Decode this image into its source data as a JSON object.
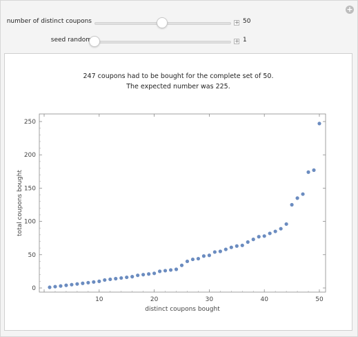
{
  "controls": {
    "coupons": {
      "label": "number of distinct coupons",
      "value": "50",
      "min": 1,
      "max": 100,
      "current": 50
    },
    "seed": {
      "label": "seed random",
      "value": "1",
      "min": 1,
      "max": 100,
      "current": 1
    }
  },
  "output": {
    "line1": "247 coupons had to be bought for the complete set of 50.",
    "line2": "The expected number was 225."
  },
  "colors": {
    "point": "#6b8cc0",
    "axis": "#888888",
    "text": "#444444"
  },
  "chart_data": {
    "type": "scatter",
    "xlabel": "distinct coupons bought",
    "ylabel": "total coupons bought",
    "xlim": [
      0,
      50
    ],
    "ylim": [
      0,
      250
    ],
    "xticks": [
      0,
      10,
      20,
      30,
      40,
      50
    ],
    "yticks": [
      0,
      50,
      100,
      150,
      200,
      250
    ],
    "tick_labels_x": [
      "10",
      "20",
      "30",
      "40",
      "50"
    ],
    "tick_labels_y": [
      "0",
      "50",
      "100",
      "150",
      "200",
      "250"
    ],
    "x": [
      1,
      2,
      3,
      4,
      5,
      6,
      7,
      8,
      9,
      10,
      11,
      12,
      13,
      14,
      15,
      16,
      17,
      18,
      19,
      20,
      21,
      22,
      23,
      24,
      25,
      26,
      27,
      28,
      29,
      30,
      31,
      32,
      33,
      34,
      35,
      36,
      37,
      38,
      39,
      40,
      41,
      42,
      43,
      44,
      45,
      46,
      47,
      48,
      49,
      50
    ],
    "y": [
      1,
      2,
      3,
      4,
      5,
      6,
      7,
      8,
      9,
      10,
      12,
      13,
      14,
      15,
      16,
      17,
      19,
      20,
      21,
      22,
      25,
      26,
      27,
      28,
      34,
      40,
      43,
      44,
      48,
      49,
      54,
      55,
      58,
      61,
      63,
      64,
      69,
      73,
      77,
      78,
      82,
      85,
      89,
      96,
      125,
      135,
      141,
      174,
      177,
      247
    ]
  }
}
